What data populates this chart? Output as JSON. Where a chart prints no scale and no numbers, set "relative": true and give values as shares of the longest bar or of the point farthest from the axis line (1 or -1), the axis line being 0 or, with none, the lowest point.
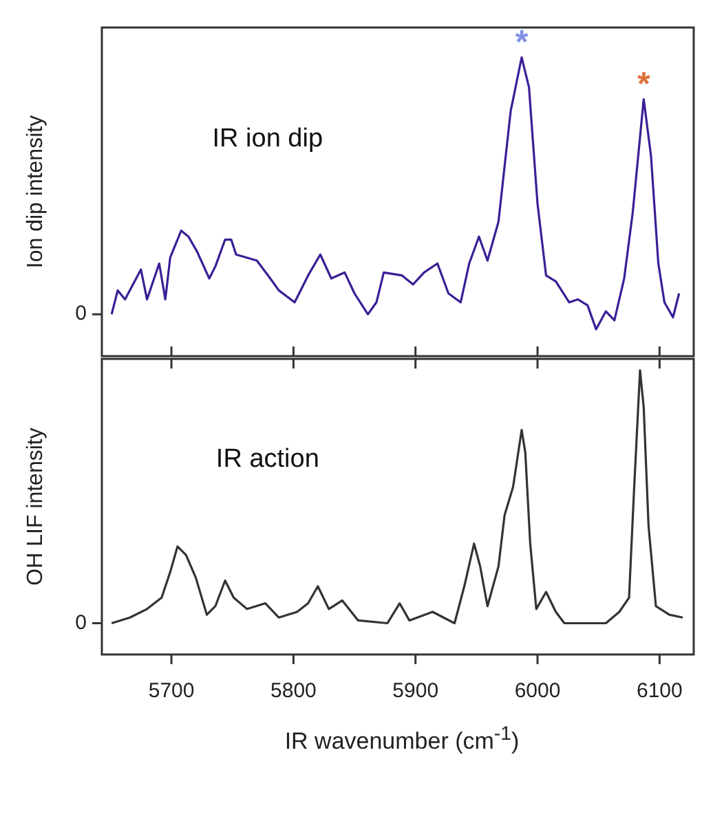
{
  "chart_data": [
    {
      "type": "line",
      "ylabel": "Ion dip intensity",
      "relative": true,
      "xlim": [
        5643,
        6128
      ],
      "xticks": [
        5700,
        5800,
        5900,
        6000,
        6100
      ],
      "tick_labels": "y",
      "annotations": [
        "0",
        "IR ion dip",
        "*",
        "*"
      ],
      "series": [
        {
          "color": "#3b1f96",
          "x": [
            5651,
            5656,
            5662,
            5675,
            5680,
            5690,
            5695,
            5699,
            5708,
            5714,
            5721,
            5731,
            5736,
            5744,
            5749,
            5753,
            5770,
            5781,
            5788,
            5801,
            5812,
            5822,
            5831,
            5842,
            5850,
            5861,
            5868,
            5874,
            5889,
            5898,
            5907,
            5918,
            5927,
            5937,
            5944,
            5952,
            5959,
            5968,
            5978,
            5987,
            5993,
            6000,
            6007,
            6015,
            6026,
            6033,
            6041,
            6048,
            6056,
            6063,
            6071,
            6078,
            6087,
            6093,
            6099,
            6104,
            6111,
            6116
          ],
          "values": [
            0.14,
            0.22,
            0.19,
            0.29,
            0.19,
            0.31,
            0.19,
            0.33,
            0.42,
            0.4,
            0.35,
            0.26,
            0.3,
            0.39,
            0.39,
            0.34,
            0.32,
            0.26,
            0.22,
            0.18,
            0.27,
            0.34,
            0.26,
            0.28,
            0.21,
            0.14,
            0.18,
            0.28,
            0.27,
            0.24,
            0.28,
            0.31,
            0.21,
            0.18,
            0.31,
            0.4,
            0.32,
            0.45,
            0.82,
            1,
            0.9,
            0.51,
            0.27,
            0.25,
            0.18,
            0.19,
            0.17,
            0.09,
            0.15,
            0.12,
            0.26,
            0.48,
            0.86,
            0.67,
            0.31,
            0.18,
            0.13,
            0.21
          ]
        }
      ]
    },
    {
      "type": "line",
      "xlabel": "IR wavenumber (cm$^{-1}$)",
      "ylabel": "OH LIF intensity",
      "relative": true,
      "xlim": [
        5643,
        6128
      ],
      "xticks": [
        5700,
        5800,
        5900,
        6000,
        6100
      ],
      "annotations": [
        "0",
        "IR action"
      ],
      "series": [
        {
          "color": "#333333",
          "x": [
            5651,
            5666,
            5680,
            5692,
            5699,
            5705,
            5712,
            5720,
            5729,
            5736,
            5744,
            5751,
            5762,
            5777,
            5788,
            5803,
            5812,
            5820,
            5829,
            5840,
            5853,
            5877,
            5887,
            5895,
            5914,
            5932,
            5940,
            5948,
            5953,
            5959,
            5968,
            5973,
            5980,
            5987,
            5990,
            5994,
            5999,
            6007,
            6015,
            6022,
            6056,
            6067,
            6075,
            6079,
            6084,
            6087,
            6091,
            6097,
            6108,
            6119
          ],
          "values": [
            0.11,
            0.13,
            0.16,
            0.2,
            0.29,
            0.38,
            0.35,
            0.27,
            0.14,
            0.17,
            0.26,
            0.2,
            0.16,
            0.18,
            0.13,
            0.15,
            0.18,
            0.24,
            0.16,
            0.19,
            0.12,
            0.11,
            0.18,
            0.12,
            0.15,
            0.11,
            0.24,
            0.39,
            0.31,
            0.17,
            0.31,
            0.49,
            0.59,
            0.79,
            0.71,
            0.39,
            0.16,
            0.22,
            0.15,
            0.11,
            0.11,
            0.15,
            0.2,
            0.57,
            1,
            0.87,
            0.45,
            0.17,
            0.14,
            0.13
          ]
        }
      ]
    }
  ]
}
